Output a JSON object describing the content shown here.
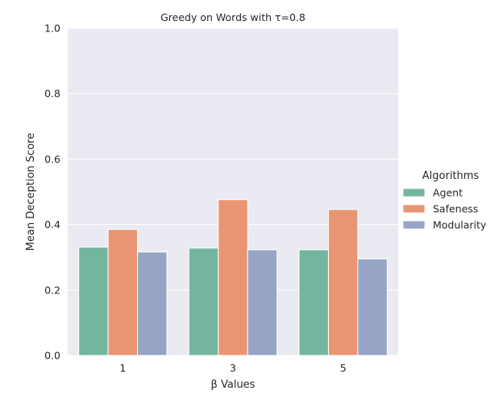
{
  "chart_data": {
    "type": "bar",
    "title": "Greedy on Words with τ=0.8",
    "xlabel": "β Values",
    "ylabel": "Mean Deception Score",
    "categories": [
      "1",
      "3",
      "5"
    ],
    "ylim": [
      0,
      1
    ],
    "yticks": [
      "0.0",
      "0.2",
      "0.4",
      "0.6",
      "0.8",
      "1.0"
    ],
    "grid": true,
    "legend": {
      "title": "Algorithms",
      "placement": "right"
    },
    "series": [
      {
        "name": "Agent",
        "color": "#73b69f",
        "values": [
          0.331,
          0.328,
          0.323
        ]
      },
      {
        "name": "Safeness",
        "color": "#ea9572",
        "values": [
          0.385,
          0.476,
          0.446
        ]
      },
      {
        "name": "Modularity",
        "color": "#96a5c5",
        "values": [
          0.316,
          0.323,
          0.295
        ]
      }
    ]
  }
}
